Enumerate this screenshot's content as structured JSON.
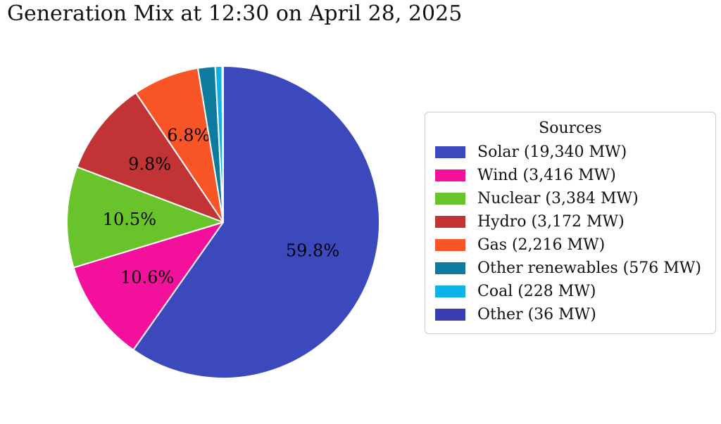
{
  "title": "Generation Mix at 12:30 on April 28, 2025",
  "legend": {
    "title": "Sources",
    "items": [
      {
        "label": "Solar (19,340 MW)",
        "color": "#3b49bd"
      },
      {
        "label": "Wind (3,416 MW)",
        "color": "#f2109d"
      },
      {
        "label": "Nuclear (3,384 MW)",
        "color": "#69c32a"
      },
      {
        "label": "Hydro (3,172 MW)",
        "color": "#c23335"
      },
      {
        "label": "Gas (2,216 MW)",
        "color": "#fa5527"
      },
      {
        "label": "Other renewables (576 MW)",
        "color": "#0e7b9d"
      },
      {
        "label": "Coal (228 MW)",
        "color": "#0fb2e8"
      },
      {
        "label": "Other (36 MW)",
        "color": "#3b3eb2"
      }
    ]
  },
  "chart_data": {
    "type": "pie",
    "title": "Generation Mix at 12:30 on April 28, 2025",
    "categories": [
      "Solar",
      "Wind",
      "Nuclear",
      "Hydro",
      "Gas",
      "Other renewables",
      "Coal",
      "Other"
    ],
    "values": [
      19340,
      3416,
      3384,
      3172,
      2216,
      576,
      228,
      36
    ],
    "unit": "MW",
    "percent_labels": [
      "59.8%",
      "10.6%",
      "10.5%",
      "9.8%",
      "6.8%",
      "",
      "",
      ""
    ],
    "colors": [
      "#3b49bd",
      "#f2109d",
      "#69c32a",
      "#c23335",
      "#fa5527",
      "#0e7b9d",
      "#0fb2e8",
      "#3b3eb2"
    ],
    "start_angle_deg": 90,
    "direction": "clockwise",
    "label_distance": 0.6,
    "legend_title": "Sources",
    "legend_position": "right"
  }
}
